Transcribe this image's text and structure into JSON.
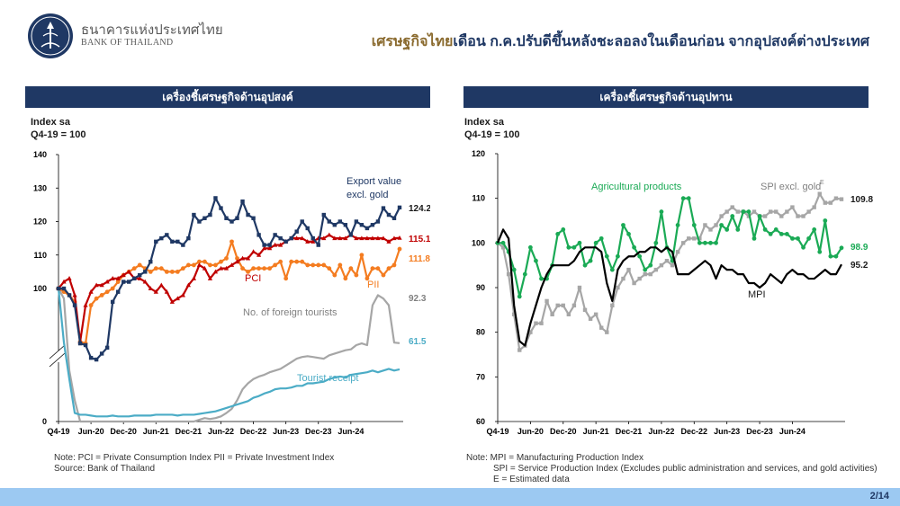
{
  "header": {
    "org_th": "ธนาคารแห่งประเทศไทย",
    "org_en": "BANK OF THAILAND",
    "headline_lead": "เศรษฐกิจไทย",
    "headline_rest": "เดือน ก.ค.ปรับดีขึ้นหลังชะลอลงในเดือนก่อน จากอุปสงค์ต่างประเทศ"
  },
  "left": {
    "panel_title": "เครื่องชี้เศรษฐกิจด้านอุปสงค์",
    "unit_line1": "Index sa",
    "unit_line2": "Q4-19 = 100",
    "notes": [
      "Note: PCI = Private Consumption Index    PII = Private Investment Index",
      "Source: Bank of Thailand"
    ]
  },
  "right": {
    "panel_title": "เครื่องชี้เศรษฐกิจด้านอุปทาน",
    "unit_line1": "Index sa",
    "unit_line2": "Q4-19 = 100",
    "notes": [
      "Note: MPI = Manufacturing Production Index",
      "SPI = Service Production Index (Excludes public administration and services, and gold activities)",
      "E = Estimated data"
    ]
  },
  "footer": {
    "page": "2/14"
  },
  "colors": {
    "navy": "#1f3864",
    "red": "#c00000",
    "orange": "#f47c20",
    "gray": "#a6a6a6",
    "teal": "#4bacc6",
    "green": "#1aaa55",
    "black": "#000000",
    "header_gold": "#8a6a2e",
    "footer": "#9cc9f2"
  },
  "chart_data": [
    {
      "type": "line",
      "title": "เครื่องชี้เศรษฐกิจด้านอุปสงค์",
      "ylabel": "Index sa, Q4-19 = 100",
      "x_tick_labels": [
        "Q4-19",
        "Jun-20",
        "Dec-20",
        "Jun-21",
        "Dec-21",
        "Jun-22",
        "Dec-22",
        "Jun-23",
        "Dec-23",
        "Jun-24"
      ],
      "y_ticks": [
        0,
        100,
        110,
        120,
        130,
        140
      ],
      "axis_break": true,
      "upper_range": [
        95,
        140
      ],
      "lower_range": [
        0,
        90
      ],
      "series": [
        {
          "name": "Export value excl. gold",
          "color_key": "navy",
          "marker": "square",
          "end_label": "124.2",
          "values": [
            100,
            100,
            98,
            95,
            92,
            90,
            75,
            73,
            80,
            87,
            96,
            99,
            102,
            102,
            103,
            104,
            105,
            108,
            114,
            115,
            116,
            114,
            114,
            113,
            115,
            122,
            120,
            121,
            122,
            127,
            124,
            121,
            120,
            121,
            126,
            122,
            121,
            116,
            113,
            113,
            116,
            115,
            114,
            115,
            117,
            120,
            118,
            115,
            113,
            122,
            120,
            119,
            120,
            119,
            116,
            120,
            119,
            118,
            119,
            120,
            124,
            122,
            121,
            124.2
          ]
        },
        {
          "name": "PCI",
          "color_key": "red",
          "marker": "triangle",
          "end_label": "115.1",
          "values": [
            100,
            102,
            103,
            98,
            94,
            95,
            99,
            101,
            101,
            102,
            103,
            103,
            104,
            105,
            103,
            103,
            102,
            100,
            99,
            101,
            99,
            96,
            97,
            98,
            101,
            103,
            107,
            106,
            103,
            105,
            106,
            106,
            107,
            108,
            109,
            109,
            111,
            110,
            112,
            112,
            113,
            113,
            114,
            115,
            115,
            115,
            114,
            114,
            115,
            115,
            116,
            115,
            115,
            115,
            116,
            115,
            115,
            115,
            115,
            115,
            115,
            114,
            115,
            115.1
          ]
        },
        {
          "name": "PII",
          "color_key": "orange",
          "marker": "circle",
          "end_label": "111.8",
          "values": [
            100,
            99,
            98,
            96,
            94,
            92,
            95,
            97,
            98,
            99,
            100,
            102,
            104,
            105,
            106,
            107,
            106,
            105,
            106,
            106,
            105,
            105,
            105,
            106,
            107,
            107,
            108,
            108,
            107,
            107,
            108,
            109,
            114,
            109,
            106,
            105,
            106,
            106,
            106,
            106,
            107,
            108,
            103,
            108,
            108,
            108,
            107,
            107,
            107,
            107,
            106,
            104,
            107,
            103,
            106,
            104,
            110,
            103,
            106,
            106,
            104,
            106,
            107,
            111.8
          ]
        },
        {
          "name": "No. of foreign tourists",
          "color_key": "gray",
          "marker": "none",
          "end_label": "92.3",
          "values": [
            100,
            97,
            60,
            25,
            0,
            0,
            0,
            0,
            0,
            0,
            0,
            0,
            0,
            0,
            0,
            0,
            0,
            0,
            0,
            0,
            0,
            0,
            0,
            0,
            0,
            0,
            2,
            4,
            3,
            4,
            6,
            10,
            15,
            25,
            38,
            45,
            50,
            53,
            55,
            58,
            60,
            62,
            66,
            70,
            74,
            76,
            77,
            76,
            75,
            74,
            78,
            80,
            82,
            84,
            85,
            90,
            92,
            90,
            95,
            98,
            97,
            95,
            93,
            92.3
          ]
        },
        {
          "name": "Tourist receipt",
          "color_key": "teal",
          "marker": "none",
          "end_label": "61.5",
          "values": [
            100,
            93,
            50,
            10,
            8,
            8,
            7,
            6,
            6,
            6,
            7,
            6,
            6,
            6,
            7,
            7,
            7,
            7,
            8,
            8,
            8,
            8,
            7,
            8,
            8,
            8,
            9,
            10,
            11,
            12,
            14,
            16,
            18,
            20,
            22,
            24,
            28,
            30,
            33,
            35,
            38,
            39,
            39,
            40,
            42,
            42,
            45,
            45,
            46,
            47,
            50,
            52,
            53,
            52,
            55,
            56,
            57,
            58,
            60,
            58,
            60,
            62,
            60,
            61.5
          ]
        }
      ]
    },
    {
      "type": "line",
      "title": "เครื่องชี้เศรษฐกิจด้านอุปทาน",
      "ylabel": "Index sa, Q4-19 = 100",
      "x_tick_labels": [
        "Q4-19",
        "Jun-20",
        "Dec-20",
        "Jun-21",
        "Dec-21",
        "Jun-22",
        "Dec-22",
        "Jun-23",
        "Dec-23",
        "Jun-24"
      ],
      "ylim": [
        60,
        120
      ],
      "y_ticks": [
        60,
        70,
        80,
        90,
        100,
        110,
        120
      ],
      "series": [
        {
          "name": "Agricultural products",
          "color_key": "green",
          "marker": "circle",
          "end_label": "98.9",
          "values": [
            100,
            100,
            98,
            94,
            88,
            93,
            99,
            96,
            92,
            92,
            95,
            102,
            103,
            99,
            99,
            100,
            95,
            96,
            100,
            101,
            97,
            94,
            97,
            104,
            102,
            99,
            97,
            94,
            95,
            100,
            107,
            99,
            96,
            104,
            110,
            110,
            104,
            100,
            100,
            100,
            100,
            104,
            103,
            106,
            103,
            107,
            107,
            101,
            106,
            103,
            102,
            103,
            102,
            102,
            101,
            101,
            99,
            101,
            103,
            98,
            105,
            97,
            97,
            98.9
          ]
        },
        {
          "name": "SPI excl. gold",
          "superscript": "E",
          "color_key": "gray",
          "marker": "square",
          "end_label": "109.8",
          "values": [
            100,
            99,
            93,
            84,
            76,
            77,
            80,
            82,
            82,
            87,
            84,
            86,
            86,
            84,
            86,
            90,
            85,
            83,
            84,
            81,
            80,
            86,
            90,
            92,
            94,
            91,
            92,
            93,
            93,
            94,
            95,
            96,
            95,
            98,
            100,
            101,
            101,
            101,
            104,
            103,
            104,
            106,
            107,
            108,
            107,
            107,
            106,
            107,
            106,
            106,
            107,
            107,
            106,
            107,
            108,
            106,
            106,
            107,
            108,
            111,
            109,
            109,
            110,
            109.8
          ]
        },
        {
          "name": "MPI",
          "color_key": "black",
          "marker": "none",
          "end_label": "95.2",
          "values": [
            100,
            103,
            101,
            86,
            78,
            77,
            82,
            86,
            90,
            93,
            95,
            95,
            95,
            95,
            96,
            98,
            99,
            99,
            99,
            98,
            91,
            87,
            94,
            96,
            97,
            97,
            98,
            98,
            99,
            99,
            98,
            99,
            98,
            93,
            93,
            93,
            94,
            95,
            96,
            95,
            92,
            95,
            94,
            94,
            93,
            93,
            91,
            91,
            90,
            91,
            93,
            92,
            91,
            93,
            94,
            93,
            93,
            92,
            92,
            93,
            94,
            93,
            93,
            95.2
          ]
        }
      ]
    }
  ]
}
